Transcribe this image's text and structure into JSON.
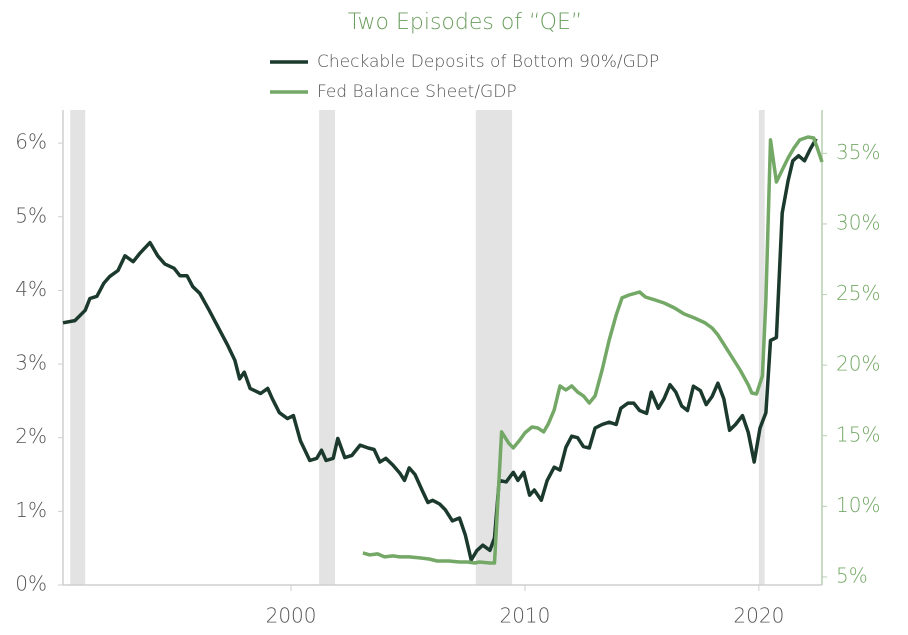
{
  "chart_data": {
    "type": "line",
    "title": "Two Episodes of “QE”",
    "xlim": [
      1990.25,
      2022.7
    ],
    "xticks": [
      2000,
      2010,
      2020
    ],
    "ylim": [
      0,
      6.45
    ],
    "yticks": [
      {
        "value": 0,
        "label": "0%"
      },
      {
        "value": 1,
        "label": "1%"
      },
      {
        "value": 2,
        "label": "2%"
      },
      {
        "value": 3,
        "label": "3%"
      },
      {
        "value": 4,
        "label": "4%"
      },
      {
        "value": 5,
        "label": "5%"
      },
      {
        "value": 6,
        "label": "6%"
      }
    ],
    "y2lim": [
      4.43,
      38.07
    ],
    "y2ticks": [
      {
        "value": 5,
        "label": "5%"
      },
      {
        "value": 10,
        "label": "10%"
      },
      {
        "value": 15,
        "label": "15%"
      },
      {
        "value": 20,
        "label": "20%"
      },
      {
        "value": 25,
        "label": "25%"
      },
      {
        "value": 30,
        "label": "30%"
      },
      {
        "value": 35,
        "label": "35%"
      }
    ],
    "shaded_periods": [
      [
        1990.56,
        1991.2
      ],
      [
        2001.2,
        2001.88
      ],
      [
        2007.9,
        2009.45
      ],
      [
        2020.0,
        2020.25
      ]
    ],
    "shade_color": "#e3e3e3",
    "series": [
      {
        "name": "Checkable Deposits of Bottom 90%/GDP",
        "color": "#1b3a2d",
        "x": [
          1990.25,
          1990.76,
          1991.2,
          1991.4,
          1991.7,
          1992.0,
          1992.25,
          1992.6,
          1992.9,
          1993.25,
          1993.55,
          1993.97,
          1994.3,
          1994.6,
          1995.0,
          1995.25,
          1995.55,
          1995.8,
          1996.1,
          1996.5,
          1996.95,
          1997.3,
          1997.6,
          1997.8,
          1998.0,
          1998.25,
          1998.7,
          1999.0,
          1999.2,
          1999.5,
          1999.85,
          2000.1,
          2000.4,
          2000.8,
          2001.1,
          2001.3,
          2001.5,
          2001.8,
          2002.0,
          2002.3,
          2002.6,
          2002.95,
          2003.3,
          2003.55,
          2003.8,
          2004.05,
          2004.35,
          2004.65,
          2004.85,
          2005.05,
          2005.3,
          2005.6,
          2005.85,
          2006.05,
          2006.35,
          2006.6,
          2006.9,
          2007.2,
          2007.45,
          2007.7,
          2007.95,
          2008.2,
          2008.5,
          2008.7,
          2008.9,
          2009.2,
          2009.5,
          2009.7,
          2009.95,
          2010.2,
          2010.4,
          2010.7,
          2010.95,
          2011.25,
          2011.5,
          2011.75,
          2012.0,
          2012.25,
          2012.5,
          2012.75,
          2013.0,
          2013.3,
          2013.6,
          2013.9,
          2014.1,
          2014.4,
          2014.65,
          2014.9,
          2015.2,
          2015.4,
          2015.7,
          2015.95,
          2016.2,
          2016.45,
          2016.7,
          2016.95,
          2017.2,
          2017.5,
          2017.75,
          2018.0,
          2018.25,
          2018.5,
          2018.75,
          2019.0,
          2019.3,
          2019.55,
          2019.8,
          2020.05,
          2020.3,
          2020.5,
          2020.75,
          2021.0,
          2021.25,
          2021.45,
          2021.7,
          2021.95,
          2022.2,
          2022.45
        ],
        "values": [
          3.56,
          3.59,
          3.73,
          3.89,
          3.92,
          4.1,
          4.19,
          4.27,
          4.47,
          4.39,
          4.51,
          4.65,
          4.47,
          4.36,
          4.3,
          4.2,
          4.2,
          4.05,
          3.96,
          3.73,
          3.46,
          3.25,
          3.05,
          2.8,
          2.89,
          2.67,
          2.6,
          2.67,
          2.53,
          2.34,
          2.26,
          2.3,
          1.96,
          1.69,
          1.72,
          1.83,
          1.69,
          1.72,
          1.99,
          1.73,
          1.76,
          1.9,
          1.86,
          1.84,
          1.67,
          1.72,
          1.63,
          1.52,
          1.42,
          1.59,
          1.5,
          1.29,
          1.12,
          1.15,
          1.1,
          1.02,
          0.87,
          0.91,
          0.68,
          0.34,
          0.47,
          0.54,
          0.47,
          0.64,
          1.42,
          1.4,
          1.53,
          1.42,
          1.53,
          1.22,
          1.29,
          1.15,
          1.42,
          1.6,
          1.56,
          1.87,
          2.02,
          2.0,
          1.88,
          1.86,
          2.13,
          2.18,
          2.21,
          2.18,
          2.4,
          2.47,
          2.47,
          2.37,
          2.33,
          2.62,
          2.4,
          2.53,
          2.72,
          2.62,
          2.43,
          2.37,
          2.7,
          2.64,
          2.45,
          2.56,
          2.74,
          2.53,
          2.1,
          2.18,
          2.3,
          2.07,
          1.67,
          2.13,
          2.34,
          3.32,
          3.36,
          5.05,
          5.49,
          5.76,
          5.83,
          5.76,
          5.92,
          6.06
        ]
      },
      {
        "name": "Fed Balance Sheet/GDP",
        "color": "#74a866",
        "axis": "y2",
        "x": [
          2003.07,
          2003.37,
          2003.7,
          2004.0,
          2004.35,
          2004.65,
          2005.05,
          2005.5,
          2005.9,
          2006.25,
          2006.75,
          2007.2,
          2007.55,
          2007.85,
          2008.05,
          2008.5,
          2008.7,
          2009.0,
          2009.3,
          2009.5,
          2009.78,
          2010.0,
          2010.3,
          2010.55,
          2010.8,
          2011.0,
          2011.25,
          2011.5,
          2011.75,
          2012.0,
          2012.25,
          2012.5,
          2012.75,
          2013.0,
          2013.3,
          2013.6,
          2013.9,
          2014.15,
          2014.45,
          2014.9,
          2015.15,
          2015.55,
          2015.95,
          2016.4,
          2016.8,
          2017.25,
          2017.7,
          2018.0,
          2018.25,
          2018.55,
          2018.85,
          2019.2,
          2019.55,
          2019.7,
          2019.9,
          2020.15,
          2020.3,
          2020.5,
          2020.75,
          2021.0,
          2021.25,
          2021.5,
          2021.75,
          2022.1,
          2022.35,
          2022.5,
          2022.7
        ],
        "values": [
          6.7,
          6.56,
          6.63,
          6.42,
          6.49,
          6.42,
          6.42,
          6.35,
          6.27,
          6.13,
          6.13,
          6.06,
          6.06,
          5.99,
          6.06,
          5.99,
          5.99,
          15.27,
          14.49,
          14.14,
          14.7,
          15.2,
          15.62,
          15.55,
          15.27,
          15.84,
          16.83,
          18.53,
          18.24,
          18.53,
          18.1,
          17.82,
          17.32,
          17.82,
          19.66,
          21.78,
          23.55,
          24.76,
          24.97,
          25.18,
          24.83,
          24.62,
          24.4,
          24.05,
          23.63,
          23.34,
          22.99,
          22.63,
          22.14,
          21.36,
          20.58,
          19.66,
          18.6,
          18.03,
          17.96,
          19.24,
          24.62,
          35.95,
          32.97,
          33.82,
          34.67,
          35.38,
          35.95,
          36.16,
          36.09,
          35.38,
          34.39
        ]
      }
    ]
  }
}
